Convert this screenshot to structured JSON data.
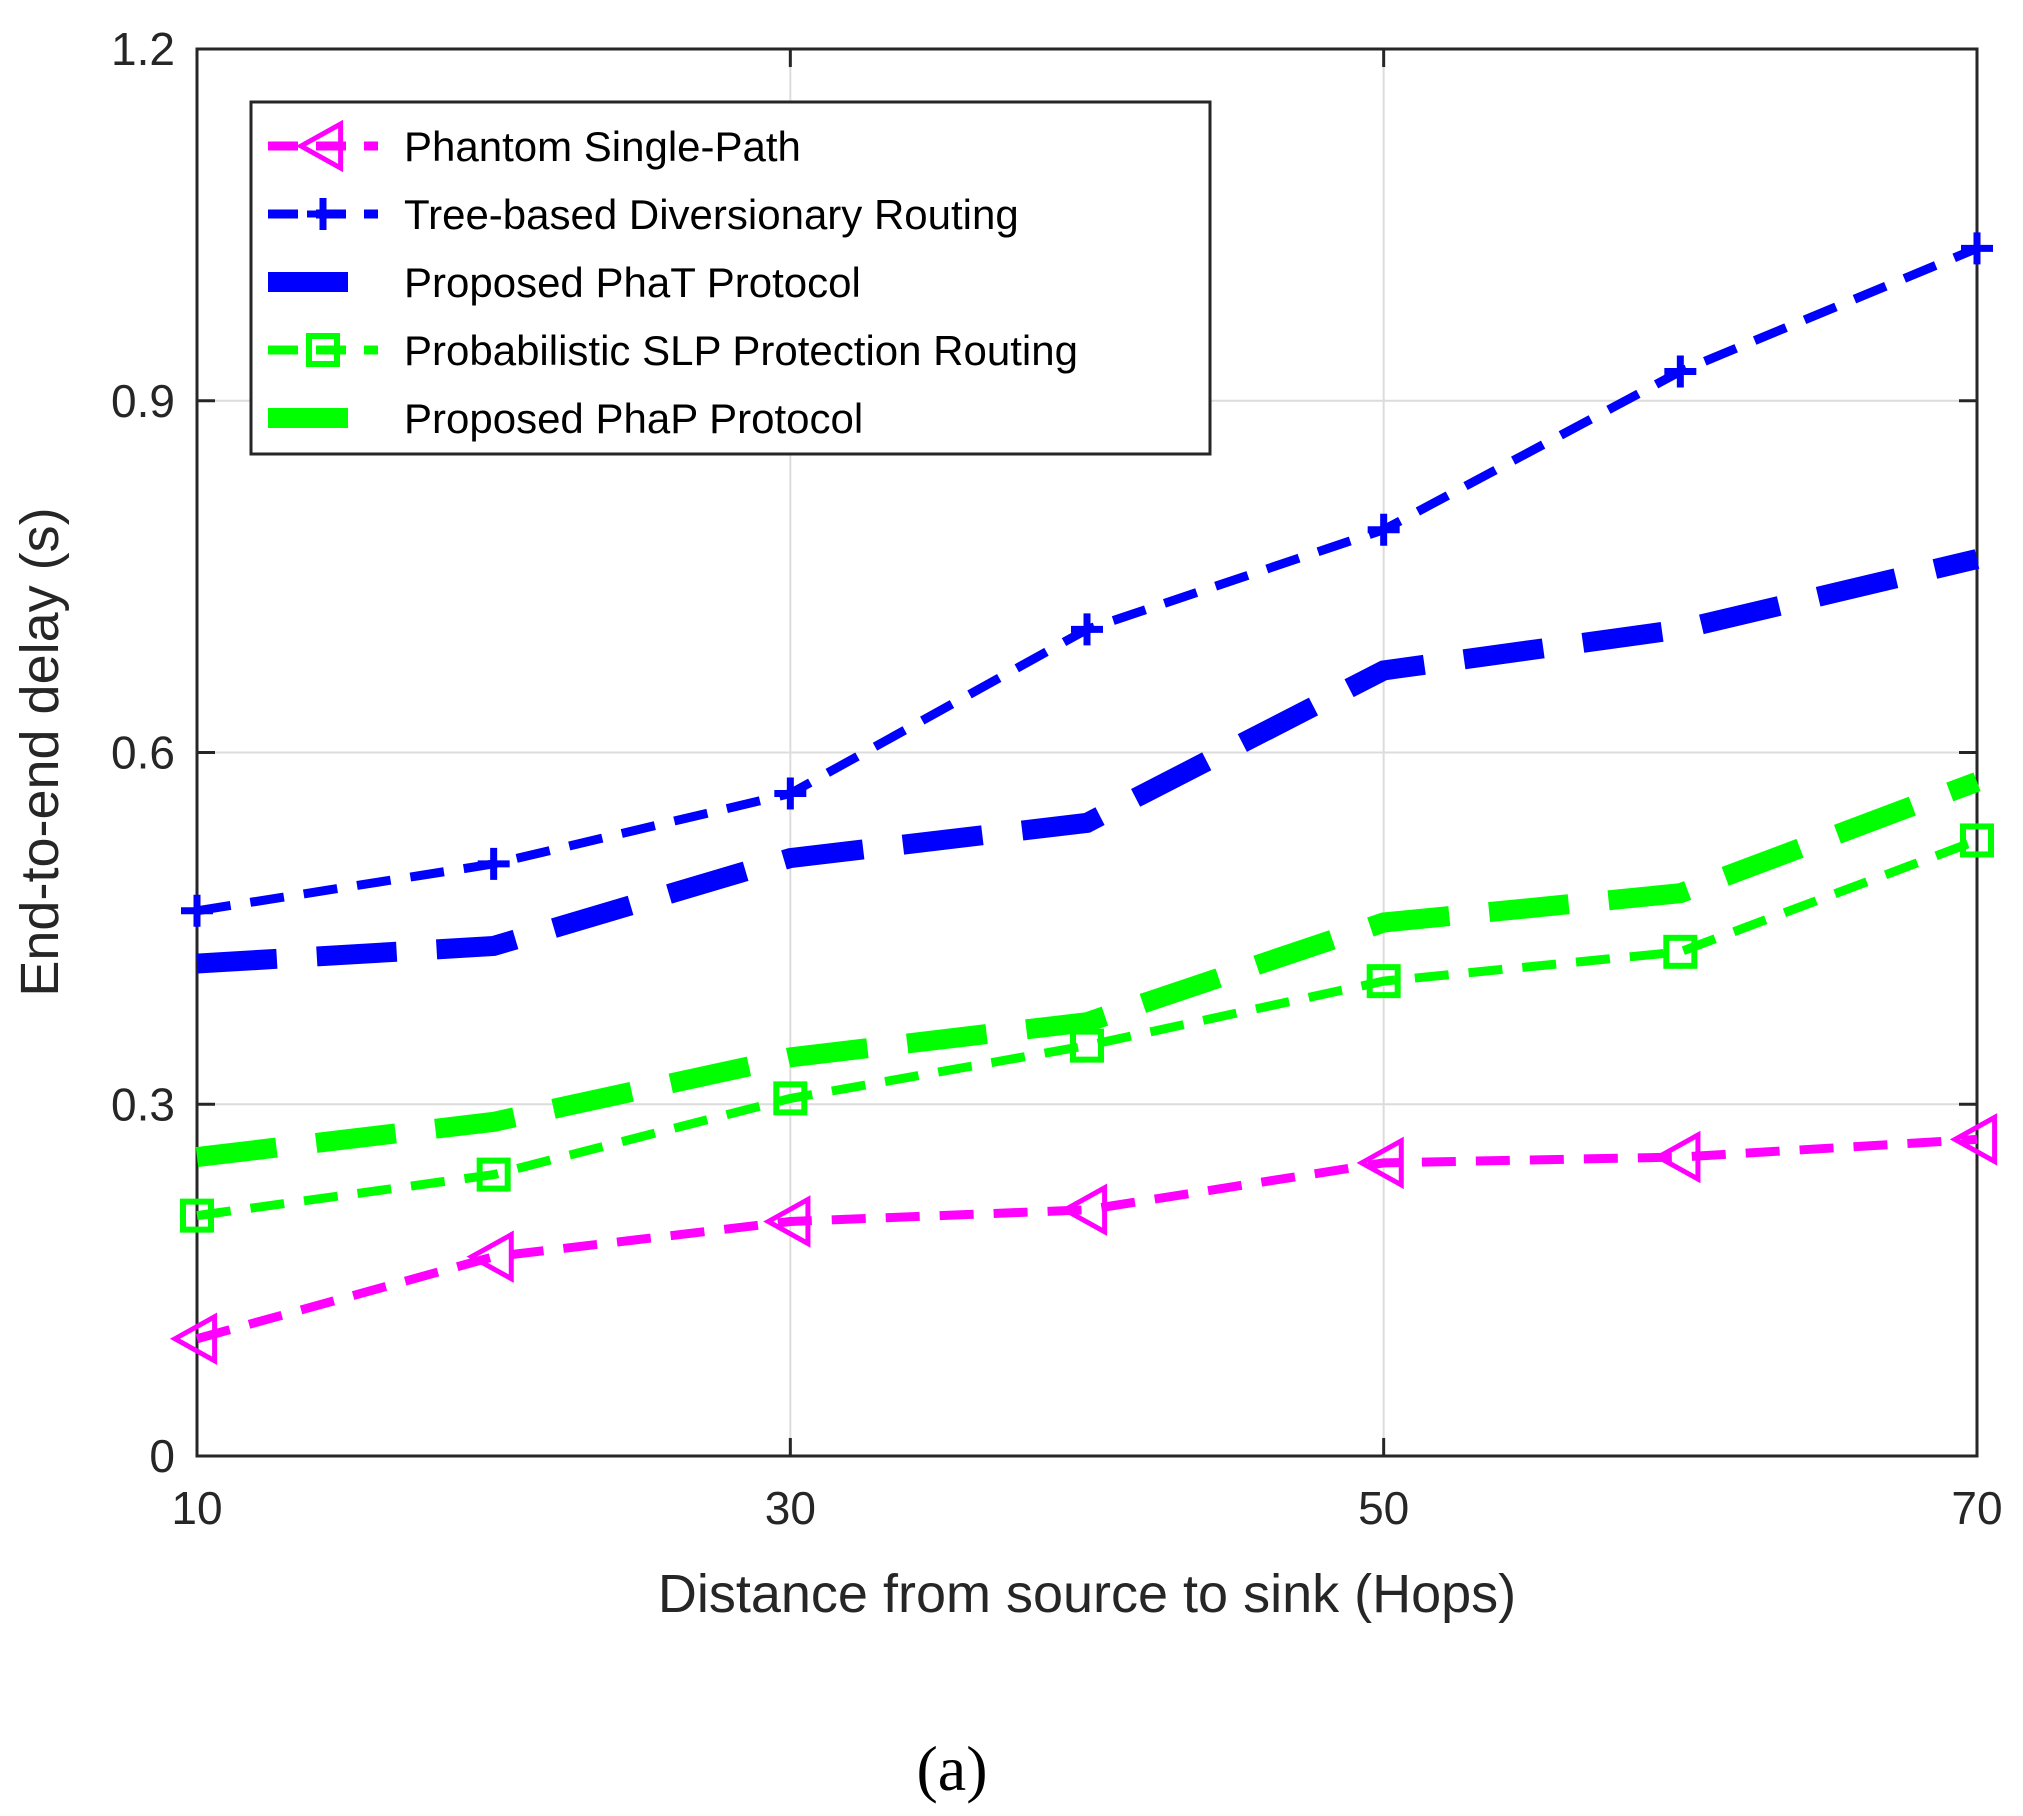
{
  "chart_data": {
    "type": "line",
    "title": "",
    "xlabel": "Distance from source to sink (Hops)",
    "ylabel": "End-to-end delay (s)",
    "xlim": [
      10,
      70
    ],
    "ylim": [
      0,
      1.2
    ],
    "xticks": [
      10,
      30,
      50,
      70
    ],
    "xtick_labels": [
      "10",
      "30",
      "50",
      "70"
    ],
    "yticks": [
      0,
      0.3,
      0.6,
      0.9,
      1.2
    ],
    "ytick_labels": [
      "0",
      "0.3",
      "0.6",
      "0.9",
      "1.2"
    ],
    "grid": true,
    "legend_position": "top-left",
    "x": [
      10,
      20,
      30,
      40,
      50,
      60,
      70
    ],
    "series": [
      {
        "name": "Phantom Single-Path",
        "color": "#ff00ff",
        "marker": "triangle-left",
        "style": "dashed-thin",
        "values": [
          0.1,
          0.17,
          0.2,
          0.21,
          0.25,
          0.255,
          0.27
        ]
      },
      {
        "name": "Tree-based Diversionary Routing",
        "color": "#0000ff",
        "marker": "plus",
        "style": "dashed-thin",
        "values": [
          0.465,
          0.505,
          0.565,
          0.705,
          0.79,
          0.925,
          1.03
        ]
      },
      {
        "name": "Proposed  PhaT Protocol",
        "color": "#0000ff",
        "marker": "none",
        "style": "dashed-thick",
        "values": [
          0.42,
          0.435,
          0.51,
          0.54,
          0.67,
          0.705,
          0.765
        ]
      },
      {
        "name": "Probabilistic SLP Protection Routing",
        "color": "#00ff00",
        "marker": "square",
        "style": "dashed-thin",
        "values": [
          0.205,
          0.24,
          0.305,
          0.35,
          0.405,
          0.43,
          0.525
        ]
      },
      {
        "name": "Proposed  PhaP Protocol",
        "color": "#00ff00",
        "marker": "none",
        "style": "dashed-thick",
        "values": [
          0.255,
          0.285,
          0.34,
          0.37,
          0.455,
          0.48,
          0.575
        ]
      }
    ],
    "caption": "(a)"
  }
}
